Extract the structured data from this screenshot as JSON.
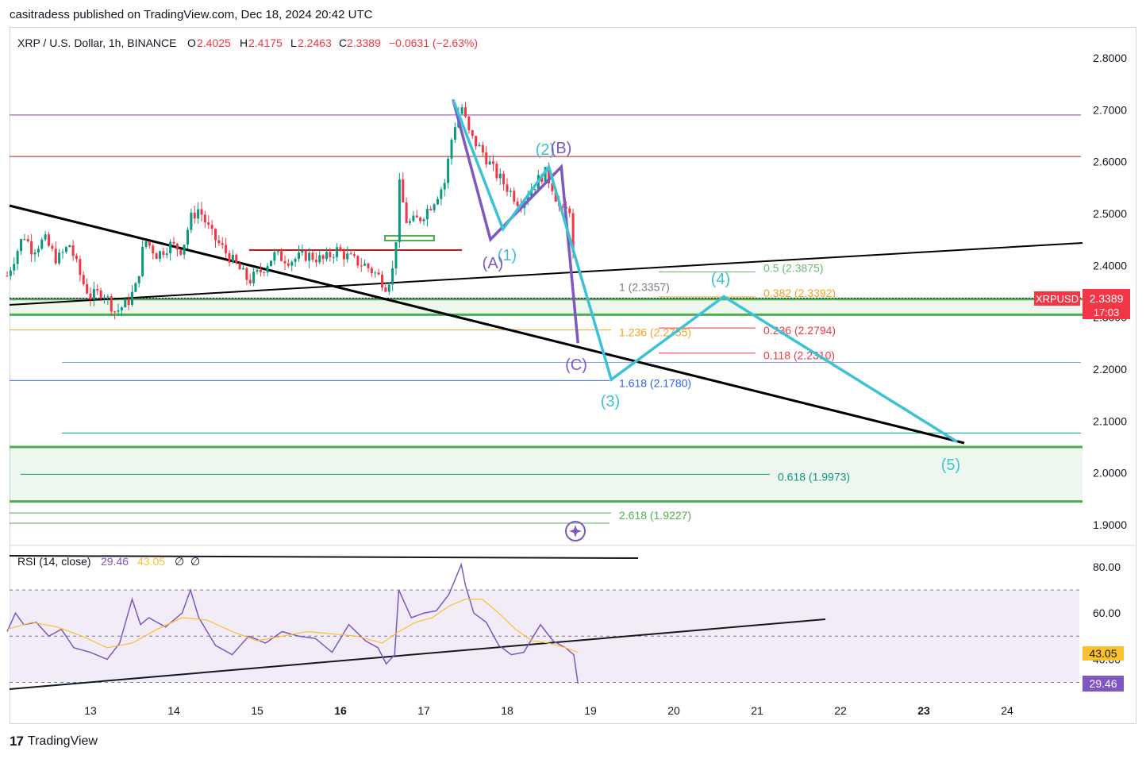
{
  "header": {
    "publisher": "casitradess published on TradingView.com, Dec 18, 2024 20:42 UTC"
  },
  "footer": {
    "brand": "TradingView"
  },
  "legend": {
    "symbol": "XRP / U.S. Dollar, 1h, BINANCE",
    "open_label": "O",
    "open": "2.4025",
    "high_label": "H",
    "high": "2.4175",
    "low_label": "L",
    "low": "2.2463",
    "close_label": "C",
    "close": "2.3389",
    "change": "−0.0631 (−2.63%)"
  },
  "price_tag": {
    "symbol": "XRPUSD",
    "price": "2.3389",
    "countdown": "17:03",
    "color": "#f23645"
  },
  "rsi": {
    "label": "RSI (14, close)",
    "value": "29.46",
    "ma": "43.05",
    "extra1": "∅",
    "extra2": "∅",
    "value_color": "#7e57c2",
    "ma_color": "#fbc02d"
  },
  "chart_data": [
    {
      "type": "candlestick",
      "title": "XRP / U.S. Dollar, 1h, BINANCE",
      "x_ticks": [
        "13",
        "14",
        "15",
        "16",
        "17",
        "18",
        "19",
        "20",
        "21",
        "22",
        "23",
        "24"
      ],
      "bold_ticks": [
        "16",
        "23"
      ],
      "y_ticks": [
        "2.8000",
        "2.7000",
        "2.6000",
        "2.5000",
        "2.4000",
        "2.3000",
        "2.2000",
        "2.1000",
        "2.0000",
        "1.9000"
      ],
      "ylim": [
        1.86,
        2.86
      ],
      "price_path": [
        [
          12.0,
          2.38
        ],
        [
          12.1,
          2.42
        ],
        [
          12.2,
          2.46
        ],
        [
          12.3,
          2.43
        ],
        [
          12.45,
          2.45
        ],
        [
          12.6,
          2.41
        ],
        [
          12.75,
          2.44
        ],
        [
          12.9,
          2.37
        ],
        [
          13.0,
          2.34
        ],
        [
          13.15,
          2.35
        ],
        [
          13.3,
          2.31
        ],
        [
          13.45,
          2.33
        ],
        [
          13.55,
          2.36
        ],
        [
          13.65,
          2.45
        ],
        [
          13.8,
          2.42
        ],
        [
          13.95,
          2.44
        ],
        [
          14.1,
          2.43
        ],
        [
          14.2,
          2.49
        ],
        [
          14.3,
          2.51
        ],
        [
          14.45,
          2.46
        ],
        [
          14.6,
          2.43
        ],
        [
          14.75,
          2.4
        ],
        [
          14.9,
          2.37
        ],
        [
          15.05,
          2.39
        ],
        [
          15.2,
          2.42
        ],
        [
          15.4,
          2.41
        ],
        [
          15.6,
          2.42
        ],
        [
          15.8,
          2.41
        ],
        [
          15.95,
          2.43
        ],
        [
          16.05,
          2.42
        ],
        [
          16.15,
          2.41
        ],
        [
          16.3,
          2.4
        ],
        [
          16.45,
          2.38
        ],
        [
          16.55,
          2.36
        ],
        [
          16.65,
          2.4
        ],
        [
          16.7,
          2.56
        ],
        [
          16.8,
          2.48
        ],
        [
          16.95,
          2.49
        ],
        [
          17.1,
          2.52
        ],
        [
          17.25,
          2.56
        ],
        [
          17.35,
          2.66
        ],
        [
          17.45,
          2.71
        ],
        [
          17.55,
          2.65
        ],
        [
          17.7,
          2.62
        ],
        [
          17.85,
          2.58
        ],
        [
          18.0,
          2.55
        ],
        [
          18.15,
          2.52
        ],
        [
          18.3,
          2.55
        ],
        [
          18.45,
          2.58
        ],
        [
          18.55,
          2.55
        ],
        [
          18.65,
          2.5
        ],
        [
          18.75,
          2.51
        ],
        [
          18.8,
          2.4
        ],
        [
          18.82,
          2.34
        ]
      ],
      "horizontal_levels": [
        {
          "price": 2.69,
          "color": "#8e3d8e",
          "label": ""
        },
        {
          "price": 2.61,
          "color": "#b22222",
          "label": ""
        },
        {
          "price": 2.3875,
          "color": "#66bb6a",
          "label": "0.5 (2.3875)"
        },
        {
          "price": 2.3392,
          "color": "#f7a21c",
          "label": "0.382 (2.3392)"
        },
        {
          "price": 2.3357,
          "color": "#787b86",
          "label": "1 (2.3357)"
        },
        {
          "price": 2.2794,
          "color": "#f23645",
          "label": "0.236 (2.2794)"
        },
        {
          "price": 2.2755,
          "color": "#f7a21c",
          "label": "1.236 (2.2755)"
        },
        {
          "price": 2.231,
          "color": "#f23645",
          "label": "0.118 (2.2310)"
        },
        {
          "price": 2.178,
          "color": "#2962ff",
          "label": "1.618 (2.1780)"
        },
        {
          "price": 1.9973,
          "color": "#089981",
          "label": "0.618 (1.9973)"
        },
        {
          "price": 1.9227,
          "color": "#4caf50",
          "label": "2.618 (1.9227)"
        }
      ],
      "support_zones": [
        {
          "from": 2.305,
          "to": 2.335,
          "color": "#4caf50"
        },
        {
          "from": 1.945,
          "to": 2.05,
          "color": "#4caf50"
        }
      ],
      "wave_labels_elliott": [
        "(1)",
        "(2)",
        "(3)",
        "(4)",
        "(5)"
      ],
      "wave_labels_abc": [
        "(A)",
        "(B)",
        "(C)"
      ],
      "elliott_path": [
        [
          17.35,
          2.72
        ],
        [
          17.95,
          2.47
        ],
        [
          18.5,
          2.59
        ],
        [
          19.25,
          2.18
        ],
        [
          20.6,
          2.34
        ],
        [
          23.4,
          2.06
        ]
      ],
      "abc_path": [
        [
          17.35,
          2.72
        ],
        [
          17.8,
          2.45
        ],
        [
          18.65,
          2.59
        ],
        [
          18.85,
          2.25
        ]
      ]
    },
    {
      "type": "line",
      "title": "RSI (14, close)",
      "y_ticks": [
        "80.00",
        "60.00",
        "40.00"
      ],
      "ylim": [
        27,
        85
      ],
      "upper_band": 70,
      "lower_band": 30,
      "mid": 50,
      "series": [
        {
          "name": "RSI",
          "x": [
            12.0,
            12.1,
            12.2,
            12.35,
            12.5,
            12.65,
            12.8,
            13.0,
            13.2,
            13.35,
            13.5,
            13.6,
            13.7,
            13.9,
            14.1,
            14.2,
            14.3,
            14.5,
            14.7,
            14.9,
            15.1,
            15.3,
            15.5,
            15.7,
            15.9,
            16.1,
            16.3,
            16.45,
            16.55,
            16.65,
            16.7,
            16.85,
            17.0,
            17.15,
            17.3,
            17.45,
            17.5,
            17.6,
            17.75,
            17.9,
            18.05,
            18.2,
            18.4,
            18.55,
            18.7,
            18.8,
            18.85
          ],
          "values": [
            52,
            60,
            55,
            56,
            50,
            53,
            45,
            43,
            40,
            47,
            66,
            55,
            58,
            54,
            60,
            70,
            58,
            46,
            42,
            50,
            47,
            52,
            50,
            49,
            43,
            55,
            48,
            45,
            38,
            42,
            70,
            58,
            60,
            61,
            68,
            81,
            72,
            60,
            56,
            46,
            42,
            43,
            55,
            48,
            45,
            42,
            29.46
          ]
        },
        {
          "name": "RSI-based MA",
          "x": [
            12.0,
            12.3,
            12.6,
            12.9,
            13.2,
            13.5,
            13.8,
            14.1,
            14.4,
            14.7,
            15.0,
            15.3,
            15.6,
            15.9,
            16.2,
            16.5,
            16.7,
            16.9,
            17.1,
            17.3,
            17.5,
            17.7,
            17.9,
            18.1,
            18.3,
            18.5,
            18.7,
            18.85
          ],
          "values": [
            53,
            56,
            54,
            50,
            45,
            47,
            53,
            58,
            57,
            52,
            48,
            50,
            52,
            51,
            50,
            47,
            52,
            56,
            58,
            63,
            66,
            66,
            60,
            53,
            48,
            47,
            45,
            43.05
          ]
        }
      ]
    }
  ],
  "colors": {
    "elliott": "#3cc2d6",
    "abc": "#7e57c2",
    "trendline": "#000000",
    "bull": "#089981",
    "bear": "#f23645",
    "grid_border": "#d1d4dc",
    "rsi_band_fill": "#ede7f6"
  }
}
